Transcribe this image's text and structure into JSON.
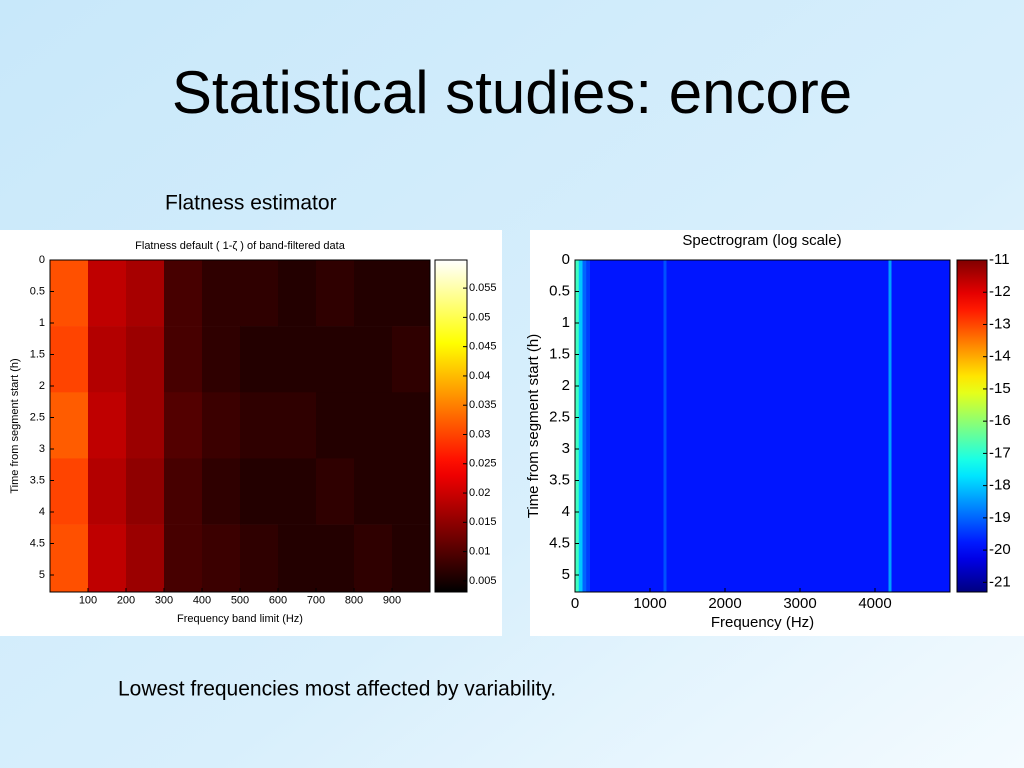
{
  "title": "Statistical studies: encore",
  "subtitle": "Flatness estimator",
  "caption": "Lowest frequencies most affected by variability.",
  "chart_data": [
    {
      "type": "heatmap",
      "title": "Flatness default ( 1-ζ ) of band-filtered data",
      "xlabel": "Frequency band limit (Hz)",
      "ylabel": "Time from segment start (h)",
      "colormap": "hot",
      "xbins": [
        0,
        100,
        200,
        300,
        400,
        500,
        600,
        700,
        800,
        900,
        1000
      ],
      "ybins": [
        0,
        1.05,
        2.1,
        3.15,
        4.2,
        5.27
      ],
      "z": [
        [
          0.031,
          0.019,
          0.017,
          0.009,
          0.007,
          0.007,
          0.006,
          0.007,
          0.006,
          0.006
        ],
        [
          0.03,
          0.018,
          0.016,
          0.009,
          0.007,
          0.006,
          0.006,
          0.006,
          0.006,
          0.007
        ],
        [
          0.032,
          0.019,
          0.016,
          0.01,
          0.008,
          0.007,
          0.007,
          0.006,
          0.006,
          0.006
        ],
        [
          0.03,
          0.018,
          0.015,
          0.009,
          0.007,
          0.006,
          0.006,
          0.007,
          0.006,
          0.006
        ],
        [
          0.031,
          0.019,
          0.016,
          0.009,
          0.008,
          0.007,
          0.006,
          0.006,
          0.007,
          0.006
        ]
      ],
      "xlim": [
        0,
        1000
      ],
      "xticks": [
        100,
        200,
        300,
        400,
        500,
        600,
        700,
        800,
        900
      ],
      "ylim": [
        0,
        5.27
      ],
      "yticks": [
        0,
        0.5,
        1,
        1.5,
        2,
        2.5,
        3,
        3.5,
        4,
        4.5,
        5
      ],
      "clim": [
        0.0031,
        0.0598
      ],
      "cticks": [
        0.005,
        0.01,
        0.015,
        0.02,
        0.025,
        0.03,
        0.035,
        0.04,
        0.045,
        0.05,
        0.055
      ]
    },
    {
      "type": "heatmap",
      "title": "Spectrogram (log scale)",
      "xlabel": "Frequency (Hz)",
      "ylabel": "Time from segment start (h)",
      "colormap": "jet",
      "xbins": [
        0,
        50,
        100,
        150,
        200,
        1180,
        1220,
        4180,
        4220,
        5000
      ],
      "ybins": [
        0,
        5.27
      ],
      "z": [
        [
          -16.8,
          -18,
          -19,
          -19.4,
          -19.8,
          -19.2,
          -19.8,
          -18.4,
          -19.8
        ]
      ],
      "xlim": [
        0,
        5000
      ],
      "xticks": [
        0,
        1000,
        2000,
        3000,
        4000
      ],
      "ylim": [
        0,
        5.27
      ],
      "yticks": [
        0,
        0.5,
        1,
        1.5,
        2,
        2.5,
        3,
        3.5,
        4,
        4.5,
        5
      ],
      "clim": [
        -21.3,
        -11
      ],
      "cticks": [
        -11,
        -12,
        -13,
        -14,
        -15,
        -16,
        -17,
        -18,
        -19,
        -20,
        -21
      ]
    }
  ]
}
